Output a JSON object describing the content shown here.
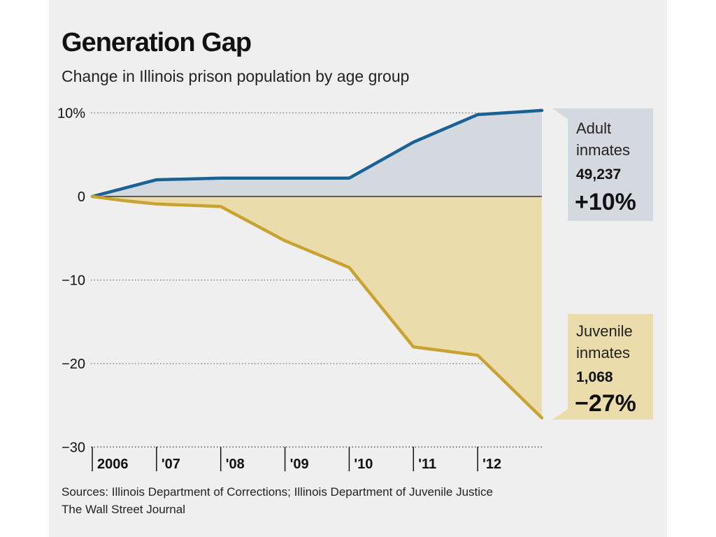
{
  "title": "Generation Gap",
  "subtitle": "Change in Illinois prison population by age group",
  "sources": "Sources: Illinois Department of Corrections; Illinois Department of Juvenile Justice",
  "credit": "The Wall Street Journal",
  "colors": {
    "adult_line": "#1a6196",
    "adult_fill": "#d4d9e0",
    "juvenile_line": "#c9a332",
    "juvenile_fill": "#eadcab",
    "background": "#efefef"
  },
  "chart_data": {
    "type": "area",
    "title": "Generation Gap",
    "subtitle": "Change in Illinois prison population by age group",
    "x": [
      2006,
      2006.5,
      2007,
      2008,
      2009,
      2010,
      2011,
      2012,
      2013
    ],
    "xtick_values": [
      2006,
      2007,
      2008,
      2009,
      2010,
      2011,
      2012
    ],
    "xtick_labels": [
      "2006",
      "'07",
      "'08",
      "'09",
      "'10",
      "'11",
      "'12"
    ],
    "ytick_values": [
      10,
      0,
      -10,
      -20,
      -30
    ],
    "ytick_labels": [
      "10%",
      "0",
      "−10",
      "−20",
      "−30"
    ],
    "ylim": [
      -30,
      10.5
    ],
    "xlim": [
      2006,
      2013
    ],
    "grid": "dotted horizontal",
    "series": [
      {
        "name": "Adult inmates",
        "count": "49,237",
        "change_label": "+10%",
        "values": [
          0,
          1,
          2,
          2.2,
          2.2,
          2.2,
          6.5,
          9.8,
          10.3
        ]
      },
      {
        "name": "Juvenile inmates",
        "count": "1,068",
        "change_label": "−27%",
        "values": [
          0,
          -0.5,
          -0.9,
          -1.2,
          -5.3,
          -8.5,
          -18,
          -19,
          -26.5
        ]
      }
    ],
    "callouts": [
      {
        "line1": "Adult",
        "line2": "inmates",
        "count": "49,237",
        "pct": "+10%"
      },
      {
        "line1": "Juvenile",
        "line2": "inmates",
        "count": "1,068",
        "pct": "−27%"
      }
    ]
  }
}
